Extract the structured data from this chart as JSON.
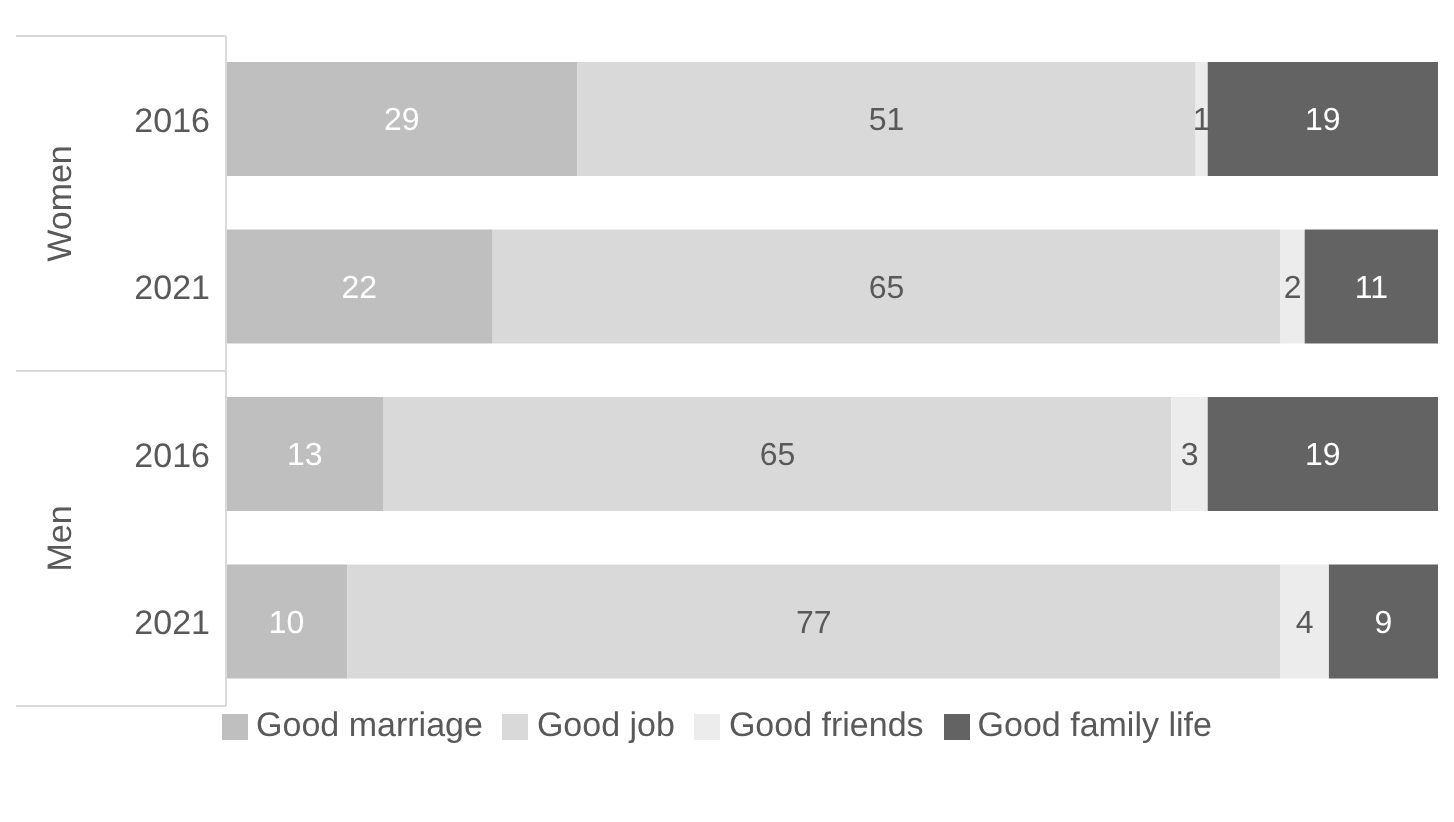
{
  "chart_data": {
    "type": "bar",
    "orientation": "horizontal",
    "stacked": true,
    "categories": [
      "2016",
      "2021",
      "2016",
      "2021"
    ],
    "series": [
      {
        "name": "Good marriage",
        "color": "#bfbfbf",
        "values": [
          29,
          22,
          13,
          10
        ]
      },
      {
        "name": "Good job",
        "color": "#d9d9d9",
        "values": [
          51,
          65,
          65,
          77
        ]
      },
      {
        "name": "Good friends",
        "color": "#ececec",
        "values": [
          1,
          2,
          3,
          4
        ]
      },
      {
        "name": "Good family life",
        "color": "#636363",
        "values": [
          19,
          11,
          19,
          9
        ]
      }
    ],
    "annotations": [
      "Women",
      "Men"
    ],
    "xlim": [
      0,
      100
    ],
    "tick_labels": "y",
    "data_labels": true,
    "legend": "bottom",
    "grid": false
  }
}
